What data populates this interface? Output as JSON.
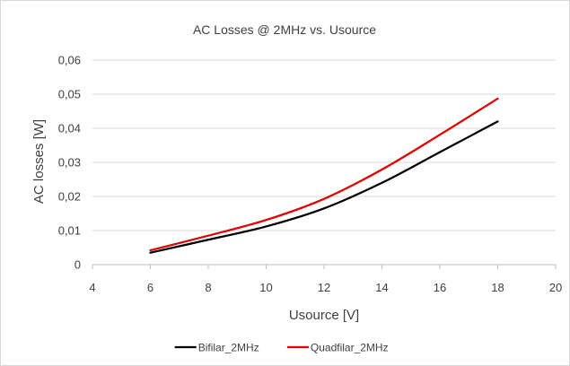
{
  "chart_data": {
    "type": "line",
    "title": "AC Losses @ 2MHz vs. Usource",
    "xlabel": "Usource [V]",
    "ylabel": "AC losses [W]",
    "xlim": [
      4,
      20
    ],
    "ylim": [
      0,
      0.06
    ],
    "x_ticks": [
      "4",
      "6",
      "8",
      "10",
      "12",
      "14",
      "16",
      "18",
      "20"
    ],
    "y_ticks": [
      "0",
      "0,01",
      "0,02",
      "0,03",
      "0,04",
      "0,05",
      "0,06"
    ],
    "grid": true,
    "legend_position": "bottom",
    "series": [
      {
        "name": "Bifilar_2MHz",
        "color": "#000000",
        "x": [
          6,
          8,
          10,
          12,
          14,
          16,
          18
        ],
        "y": [
          0.0035,
          0.0073,
          0.0112,
          0.0165,
          0.024,
          0.033,
          0.042
        ]
      },
      {
        "name": "Quadfilar_2MHz",
        "color": "#e00000",
        "x": [
          6,
          8,
          10,
          12,
          14,
          16,
          18
        ],
        "y": [
          0.0042,
          0.0085,
          0.0131,
          0.0193,
          0.0279,
          0.0381,
          0.0487
        ]
      }
    ]
  }
}
